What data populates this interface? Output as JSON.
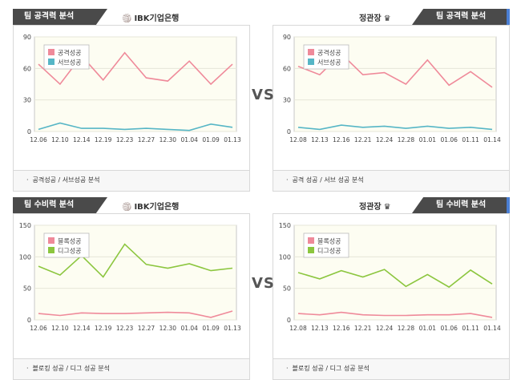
{
  "vs_label": "VS",
  "panels": [
    {
      "side": "left",
      "tab": "팀 공격력 분석",
      "team": "IBK기업은행",
      "accent": "#f29c1f",
      "note": "공격성공 / 서브성공 분석",
      "chart_data": {
        "type": "line",
        "categories": [
          "12.06",
          "12.10",
          "12.14",
          "12.19",
          "12.23",
          "12.27",
          "12.30",
          "01.04",
          "01.09",
          "01.13"
        ],
        "ylim": [
          0,
          90
        ],
        "yticks": [
          0,
          30,
          60,
          90
        ],
        "series": [
          {
            "name": "공격성공",
            "color": "#ef8a9a",
            "values": [
              64,
              45,
              72,
              49,
              75,
              51,
              48,
              67,
              45,
              64
            ]
          },
          {
            "name": "서브성공",
            "color": "#56b6c6",
            "values": [
              2,
              8,
              3,
              3,
              2,
              3,
              2,
              1,
              7,
              4
            ]
          }
        ]
      }
    },
    {
      "side": "right",
      "tab": "팀 공격력 분석",
      "team": "정관장",
      "accent": "#4a7fd4",
      "note": "공격 성공 / 서브 성공 분석",
      "chart_data": {
        "type": "line",
        "categories": [
          "12.08",
          "12.13",
          "12.16",
          "12.21",
          "12.24",
          "12.28",
          "01.01",
          "01.06",
          "01.11",
          "01.14"
        ],
        "ylim": [
          0,
          90
        ],
        "yticks": [
          0,
          30,
          60,
          90
        ],
        "series": [
          {
            "name": "공격성공",
            "color": "#ef8a9a",
            "values": [
              62,
              54,
              74,
              54,
              56,
              45,
              68,
              44,
              57,
              42
            ]
          },
          {
            "name": "서브성공",
            "color": "#56b6c6",
            "values": [
              4,
              2,
              6,
              4,
              5,
              3,
              5,
              3,
              4,
              2
            ]
          }
        ]
      }
    },
    {
      "side": "left",
      "tab": "팀 수비력 분석",
      "team": "IBK기업은행",
      "accent": "#f29c1f",
      "note": "블로킹 성공 / 디그 성공 분석",
      "chart_data": {
        "type": "line",
        "categories": [
          "12.06",
          "12.10",
          "12.14",
          "12.19",
          "12.23",
          "12.27",
          "12.30",
          "01.04",
          "01.09",
          "01.13"
        ],
        "ylim": [
          0,
          150
        ],
        "yticks": [
          0,
          50,
          100,
          150
        ],
        "series": [
          {
            "name": "블록성공",
            "color": "#ef8a9a",
            "values": [
              10,
              7,
              11,
              10,
              10,
              11,
              12,
              11,
              4,
              14
            ]
          },
          {
            "name": "디그성공",
            "color": "#8cc63f",
            "values": [
              85,
              71,
              102,
              68,
              120,
              88,
              82,
              89,
              78,
              82
            ]
          }
        ]
      }
    },
    {
      "side": "right",
      "tab": "팀 수비력 분석",
      "team": "정관장",
      "accent": "#4a7fd4",
      "note": "블로킹 성공 / 디그 성공 분석",
      "chart_data": {
        "type": "line",
        "categories": [
          "12.08",
          "12.13",
          "12.16",
          "12.21",
          "12.24",
          "12.28",
          "01.01",
          "01.06",
          "01.11",
          "01.14"
        ],
        "ylim": [
          0,
          150
        ],
        "yticks": [
          0,
          50,
          100,
          150
        ],
        "series": [
          {
            "name": "블록성공",
            "color": "#ef8a9a",
            "values": [
              10,
              8,
              12,
              8,
              7,
              7,
              8,
              8,
              10,
              4
            ]
          },
          {
            "name": "디그성공",
            "color": "#8cc63f",
            "values": [
              75,
              65,
              78,
              68,
              80,
              53,
              72,
              52,
              79,
              57
            ]
          }
        ]
      }
    }
  ]
}
